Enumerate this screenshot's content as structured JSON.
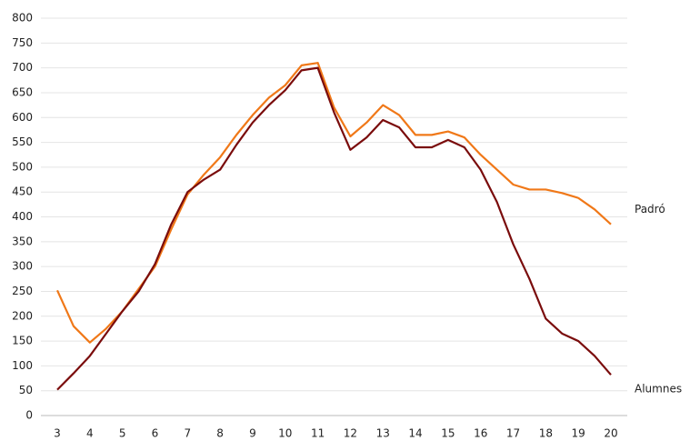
{
  "chart_data": {
    "type": "line",
    "x": [
      3,
      3.5,
      4,
      4.5,
      5,
      5.5,
      6,
      6.5,
      7,
      7.5,
      8,
      8.5,
      9,
      9.5,
      10,
      10.5,
      11,
      11.5,
      12,
      12.5,
      13,
      13.5,
      14,
      14.5,
      15,
      15.5,
      16,
      16.5,
      17,
      17.5,
      18,
      18.5,
      19,
      19.5,
      20
    ],
    "series": [
      {
        "name": "Padró",
        "color": "#f07818",
        "values": [
          252,
          180,
          147,
          175,
          210,
          255,
          300,
          375,
          445,
          485,
          520,
          565,
          605,
          640,
          665,
          705,
          710,
          620,
          562,
          590,
          625,
          605,
          565,
          565,
          572,
          560,
          525,
          495,
          465,
          455,
          455,
          448,
          438,
          415,
          385
        ]
      },
      {
        "name": "Alumnes",
        "color": "#7a0c0c",
        "values": [
          52,
          85,
          120,
          165,
          210,
          250,
          305,
          385,
          450,
          475,
          495,
          545,
          590,
          625,
          655,
          695,
          700,
          610,
          535,
          560,
          595,
          580,
          540,
          540,
          555,
          540,
          495,
          430,
          345,
          275,
          195,
          165,
          150,
          120,
          82
        ]
      }
    ],
    "xlim": [
      3,
      20
    ],
    "xticks": [
      3,
      4,
      5,
      6,
      7,
      8,
      9,
      10,
      11,
      12,
      13,
      14,
      15,
      16,
      17,
      18,
      19,
      20
    ],
    "ylim": [
      0,
      800
    ],
    "yticks": [
      0,
      50,
      100,
      150,
      200,
      250,
      300,
      350,
      400,
      450,
      500,
      550,
      600,
      650,
      700,
      750,
      800
    ],
    "grid": true
  }
}
